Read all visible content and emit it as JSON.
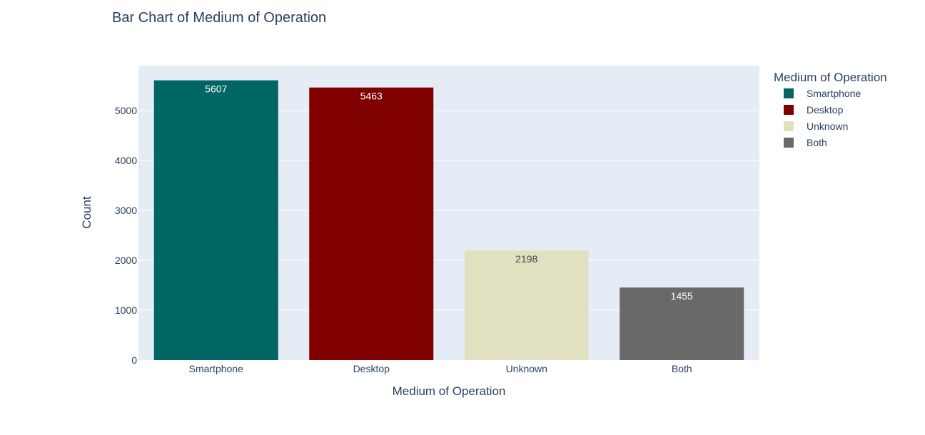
{
  "chart_data": {
    "type": "bar",
    "title": "Bar Chart of Medium of Operation",
    "xlabel": "Medium of Operation",
    "ylabel": "Count",
    "categories": [
      "Smartphone",
      "Desktop",
      "Unknown",
      "Both"
    ],
    "values": [
      5607,
      5463,
      2198,
      1455
    ],
    "value_labels": [
      "5607",
      "5463",
      "2198",
      "1455"
    ],
    "colors": [
      "#006663",
      "#800000",
      "#e1e1c1",
      "#696969"
    ],
    "label_colors": [
      "#ffffff",
      "#ffffff",
      "#444444",
      "#ffffff"
    ],
    "ylim": [
      0,
      5902
    ],
    "yticks": [
      0,
      1000,
      2000,
      3000,
      4000,
      5000
    ],
    "ytick_labels": [
      "0",
      "1000",
      "2000",
      "3000",
      "4000",
      "5000"
    ],
    "grid": true,
    "plot_background": "#e5ecf6",
    "legend": {
      "title": "Medium of Operation",
      "placement": "right",
      "entries": [
        "Smartphone",
        "Desktop",
        "Unknown",
        "Both"
      ]
    }
  }
}
